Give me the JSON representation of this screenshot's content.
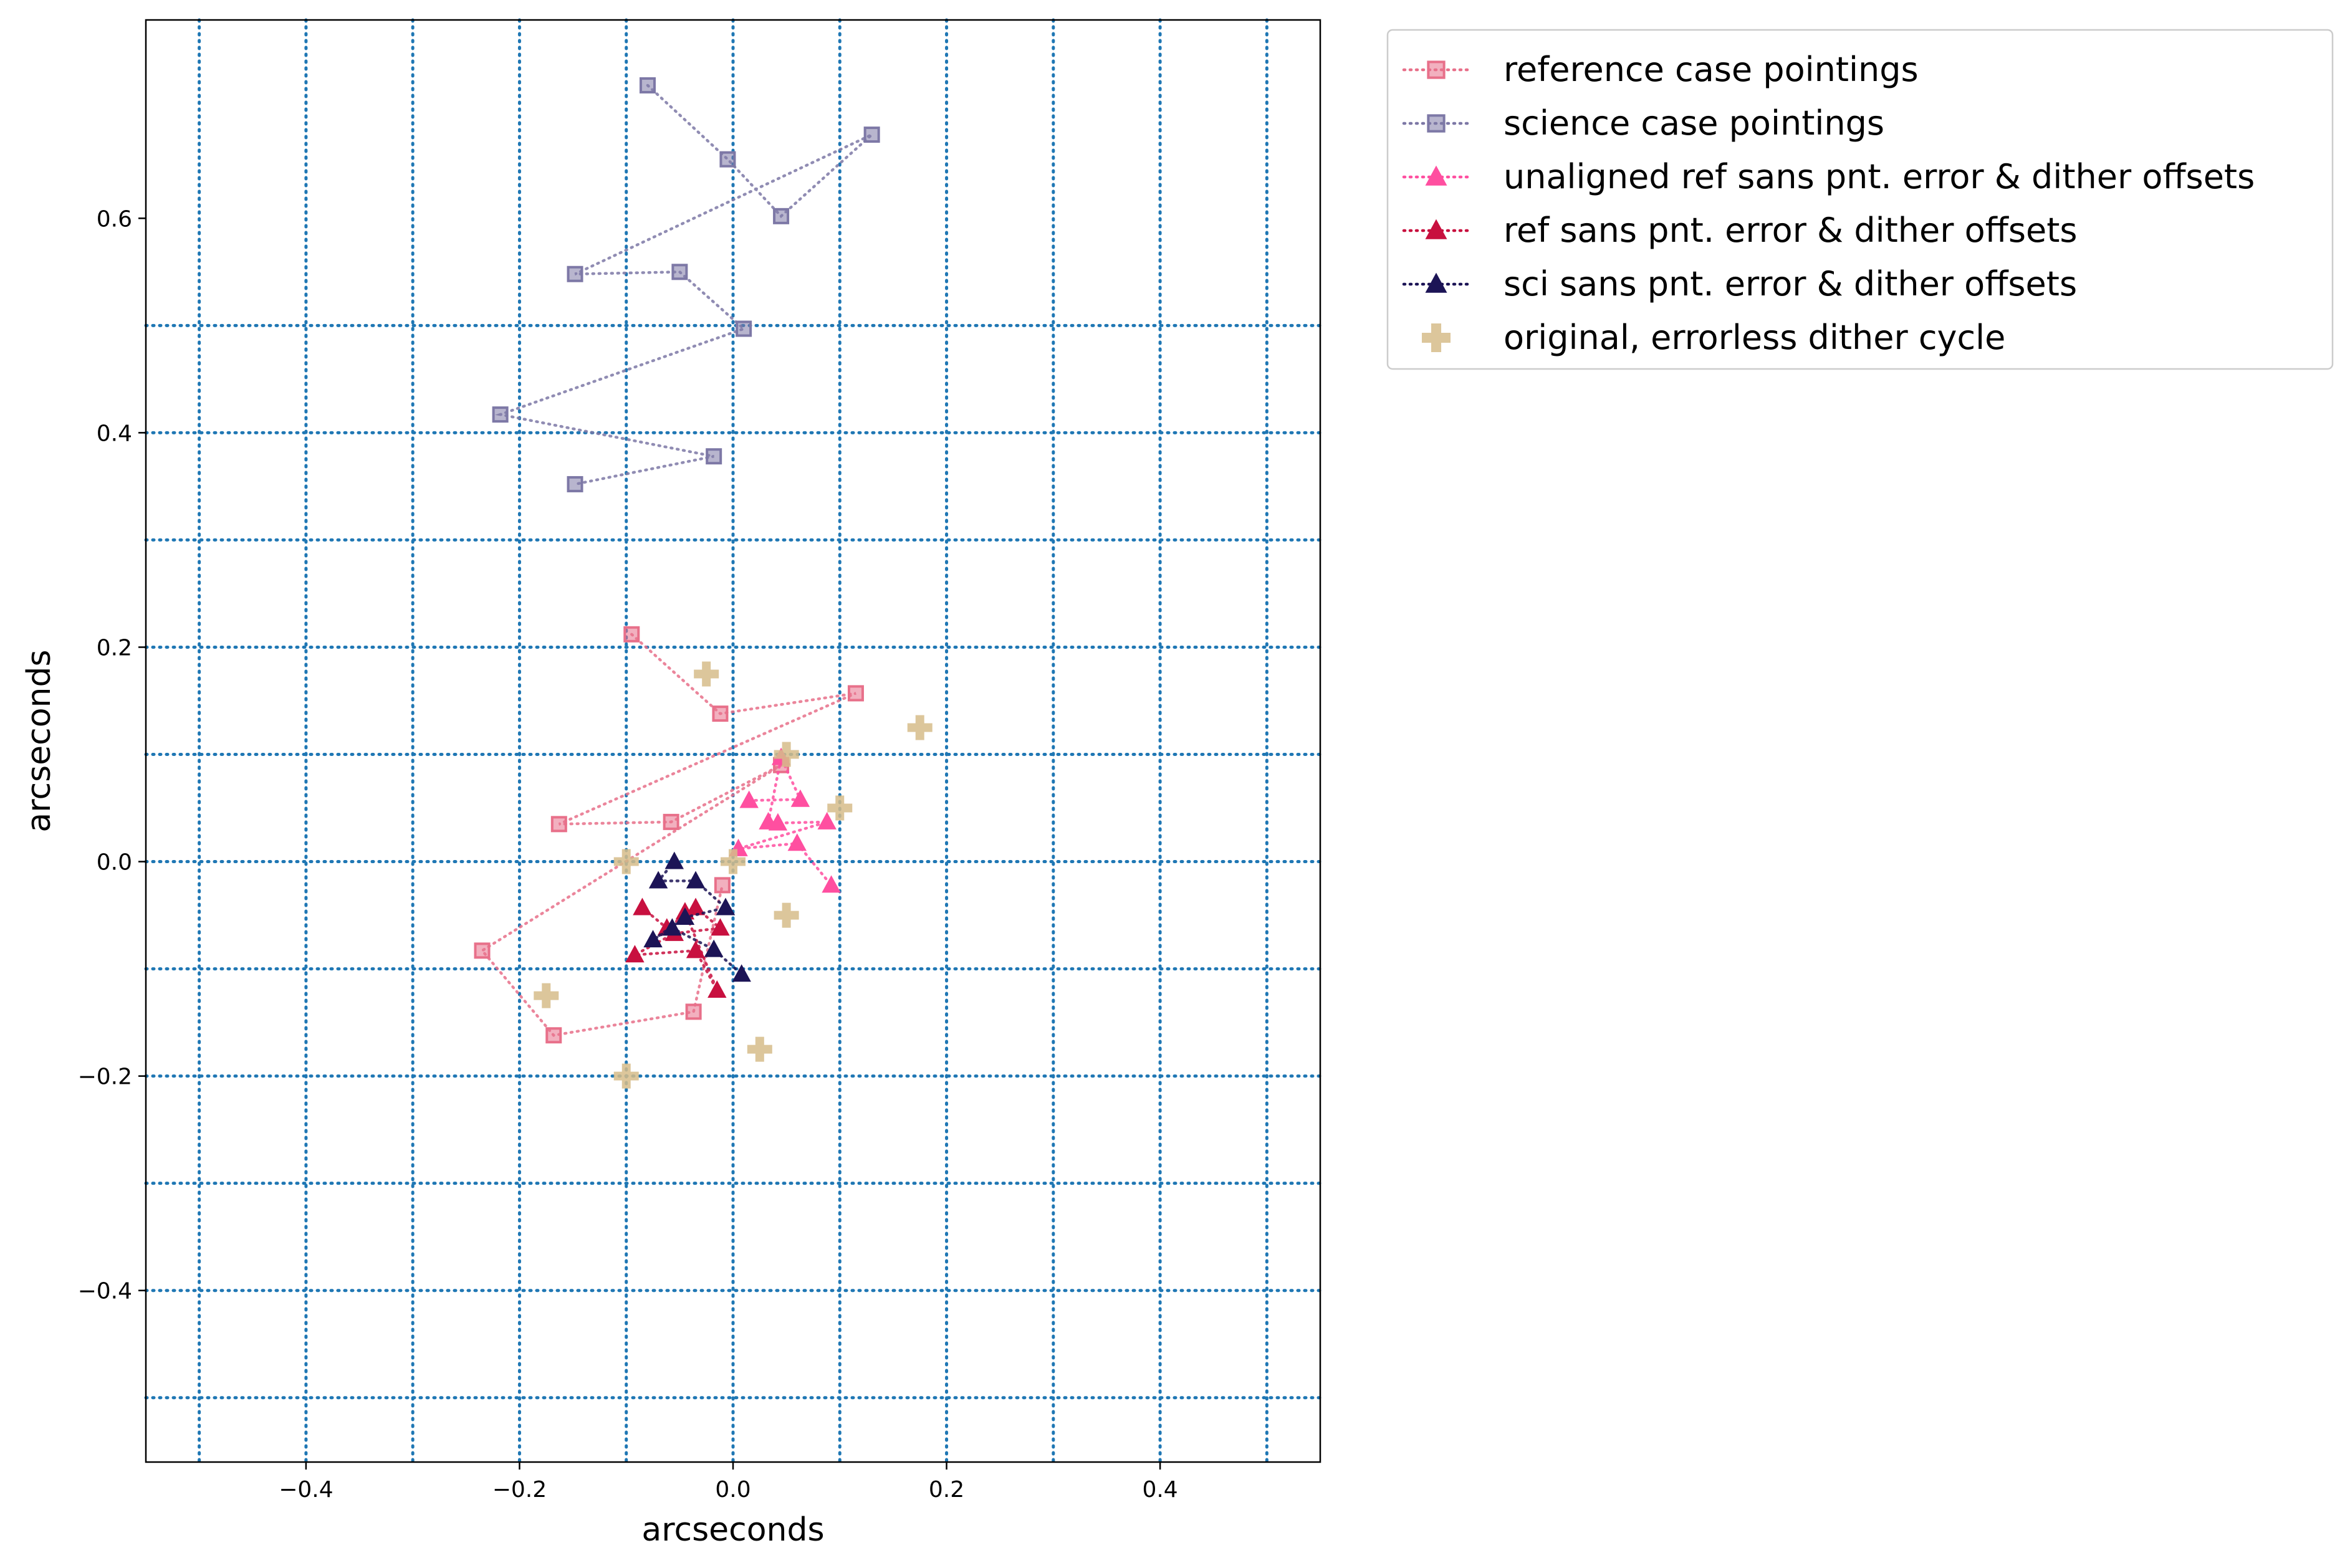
{
  "chart_data": {
    "type": "scatter",
    "xlabel": "arcseconds",
    "ylabel": "arcseconds",
    "xlim": [
      -0.55,
      0.55
    ],
    "ylim": [
      -0.56,
      0.785
    ],
    "x_ticks": [
      -0.4,
      -0.2,
      0.0,
      0.2,
      0.4
    ],
    "y_ticks": [
      -0.4,
      -0.2,
      0.0,
      0.2,
      0.4,
      0.6
    ],
    "grid": {
      "on": true,
      "style": "dotted",
      "color": "#1f77b4",
      "x": [
        -0.5,
        -0.4,
        -0.3,
        -0.2,
        -0.1,
        0.0,
        0.1,
        0.2,
        0.3,
        0.4,
        0.5
      ],
      "y": [
        -0.5,
        -0.4,
        -0.3,
        -0.2,
        -0.1,
        0.0,
        0.1,
        0.2,
        0.3,
        0.4,
        0.5
      ]
    },
    "legend_position": "outside upper right",
    "series": [
      {
        "name": "reference case pointings",
        "marker": "square",
        "color": "#e8708a",
        "linestyle": "dotted",
        "points": [
          [
            -0.095,
            0.212
          ],
          [
            -0.012,
            0.138
          ],
          [
            0.115,
            0.157
          ],
          [
            -0.163,
            0.035
          ],
          [
            -0.058,
            0.037
          ],
          [
            0.045,
            0.09
          ],
          [
            -0.235,
            -0.083
          ],
          [
            -0.168,
            -0.162
          ],
          [
            -0.037,
            -0.14
          ],
          [
            -0.01,
            -0.022
          ]
        ]
      },
      {
        "name": "science case pointings",
        "marker": "square",
        "color": "#7d78a6",
        "linestyle": "dotted",
        "points": [
          [
            -0.08,
            0.724
          ],
          [
            -0.005,
            0.655
          ],
          [
            0.045,
            0.602
          ],
          [
            0.13,
            0.678
          ],
          [
            -0.148,
            0.548
          ],
          [
            -0.05,
            0.55
          ],
          [
            0.01,
            0.497
          ],
          [
            -0.218,
            0.417
          ],
          [
            -0.018,
            0.378
          ],
          [
            -0.148,
            0.352
          ]
        ]
      },
      {
        "name": "unaligned ref sans pnt. error & dither offsets",
        "marker": "triangle",
        "color": "#ff4fa0",
        "linestyle": "dotted",
        "points": [
          [
            0.015,
            0.057
          ],
          [
            0.063,
            0.058
          ],
          [
            0.045,
            0.097
          ],
          [
            0.033,
            0.037
          ],
          [
            0.042,
            0.036
          ],
          [
            0.088,
            0.037
          ],
          [
            0.005,
            0.012
          ],
          [
            0.06,
            0.017
          ],
          [
            0.092,
            -0.022
          ]
        ]
      },
      {
        "name": "ref sans pnt. error & dither offsets",
        "marker": "triangle",
        "color": "#c8103f",
        "linestyle": "dotted",
        "points": [
          [
            -0.085,
            -0.043
          ],
          [
            -0.062,
            -0.062
          ],
          [
            -0.035,
            -0.043
          ],
          [
            -0.012,
            -0.062
          ],
          [
            -0.055,
            -0.067
          ],
          [
            -0.092,
            -0.087
          ],
          [
            -0.035,
            -0.083
          ],
          [
            -0.015,
            -0.12
          ],
          [
            -0.045,
            -0.047
          ]
        ]
      },
      {
        "name": "sci sans pnt. error & dither offsets",
        "marker": "triangle",
        "color": "#1c1456",
        "linestyle": "dotted",
        "points": [
          [
            -0.055,
            0.0
          ],
          [
            -0.07,
            -0.018
          ],
          [
            -0.035,
            -0.018
          ],
          [
            -0.007,
            -0.043
          ],
          [
            -0.045,
            -0.052
          ],
          [
            -0.075,
            -0.073
          ],
          [
            -0.057,
            -0.062
          ],
          [
            -0.018,
            -0.082
          ],
          [
            0.008,
            -0.105
          ]
        ]
      },
      {
        "name": "original, errorless dither cycle",
        "marker": "plus",
        "color": "#d6bc8a",
        "linestyle": "none",
        "points": [
          [
            -0.025,
            0.175
          ],
          [
            0.175,
            0.125
          ],
          [
            0.05,
            0.1
          ],
          [
            0.1,
            0.05
          ],
          [
            -0.1,
            0.0
          ],
          [
            0.0,
            0.0
          ],
          [
            0.05,
            -0.05
          ],
          [
            -0.175,
            -0.125
          ],
          [
            0.025,
            -0.175
          ],
          [
            -0.1,
            -0.2
          ]
        ]
      }
    ]
  }
}
